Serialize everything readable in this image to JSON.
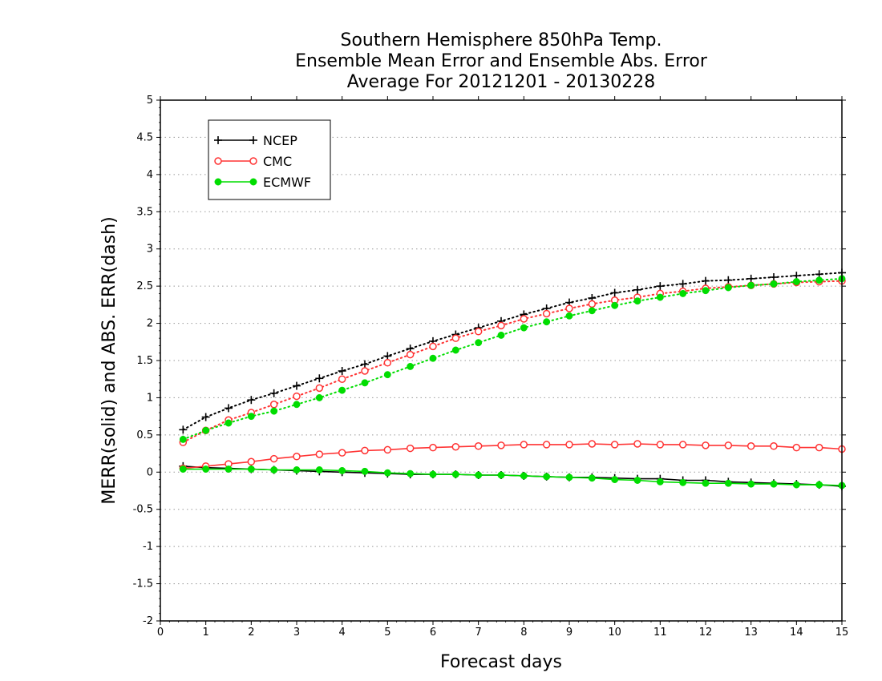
{
  "chart_data": {
    "type": "line",
    "title_lines": [
      "Southern Hemisphere 850hPa Temp.",
      "Ensemble Mean Error and Ensemble Abs. Error",
      "Average For 20121201 - 20130228"
    ],
    "xlabel": "Forecast days",
    "ylabel": "MERR(solid) and ABS. ERR(dash)",
    "xlim": [
      0,
      15
    ],
    "ylim": [
      -2,
      5
    ],
    "x_ticks": [
      "0",
      "1",
      "2",
      "3",
      "4",
      "5",
      "6",
      "7",
      "8",
      "9",
      "10",
      "11",
      "12",
      "13",
      "14",
      "15"
    ],
    "y_ticks": [
      "5",
      "4.5",
      "4",
      "3.5",
      "3",
      "2.5",
      "2",
      "1.5",
      "1",
      "0.5",
      "0",
      "-0.5",
      "-1",
      "-1.5",
      "-2"
    ],
    "grid": "horizontal dotted",
    "legend_position": "top-left",
    "x": [
      0.5,
      1,
      1.5,
      2,
      2.5,
      3,
      3.5,
      4,
      4.5,
      5,
      5.5,
      6,
      6.5,
      7,
      7.5,
      8,
      8.5,
      9,
      9.5,
      10,
      10.5,
      11,
      11.5,
      12,
      12.5,
      13,
      13.5,
      14,
      14.5,
      15
    ],
    "series": [
      {
        "name": "NCEP",
        "color": "#000000",
        "marker": "plus",
        "abs_err": [
          0.57,
          0.74,
          0.86,
          0.97,
          1.06,
          1.16,
          1.26,
          1.36,
          1.45,
          1.56,
          1.66,
          1.76,
          1.85,
          1.94,
          2.03,
          2.12,
          2.2,
          2.28,
          2.34,
          2.41,
          2.45,
          2.5,
          2.53,
          2.57,
          2.58,
          2.6,
          2.62,
          2.64,
          2.66,
          2.68
        ],
        "mean_err": [
          0.08,
          0.06,
          0.05,
          0.04,
          0.03,
          0.02,
          0.01,
          0.0,
          -0.01,
          -0.02,
          -0.03,
          -0.03,
          -0.03,
          -0.04,
          -0.04,
          -0.05,
          -0.06,
          -0.07,
          -0.07,
          -0.08,
          -0.09,
          -0.09,
          -0.11,
          -0.11,
          -0.13,
          -0.14,
          -0.15,
          -0.16,
          -0.17,
          -0.19
        ]
      },
      {
        "name": "CMC",
        "color": "#ff3333",
        "marker": "open-circle",
        "abs_err": [
          0.4,
          0.56,
          0.7,
          0.8,
          0.91,
          1.02,
          1.13,
          1.25,
          1.36,
          1.47,
          1.58,
          1.69,
          1.8,
          1.89,
          1.97,
          2.06,
          2.13,
          2.2,
          2.26,
          2.31,
          2.35,
          2.4,
          2.43,
          2.47,
          2.49,
          2.51,
          2.53,
          2.55,
          2.56,
          2.57
        ],
        "mean_err": [
          0.05,
          0.08,
          0.11,
          0.14,
          0.18,
          0.21,
          0.24,
          0.26,
          0.29,
          0.3,
          0.32,
          0.33,
          0.34,
          0.35,
          0.36,
          0.37,
          0.37,
          0.37,
          0.38,
          0.37,
          0.38,
          0.37,
          0.37,
          0.36,
          0.36,
          0.35,
          0.35,
          0.33,
          0.33,
          0.31
        ]
      },
      {
        "name": "ECMWF",
        "color": "#00dd00",
        "marker": "filled-circle",
        "abs_err": [
          0.44,
          0.56,
          0.66,
          0.75,
          0.82,
          0.91,
          1.0,
          1.1,
          1.2,
          1.31,
          1.42,
          1.53,
          1.64,
          1.74,
          1.84,
          1.94,
          2.02,
          2.1,
          2.17,
          2.24,
          2.3,
          2.35,
          2.4,
          2.44,
          2.48,
          2.51,
          2.53,
          2.56,
          2.58,
          2.6
        ],
        "mean_err": [
          0.04,
          0.04,
          0.04,
          0.04,
          0.03,
          0.03,
          0.03,
          0.02,
          0.01,
          -0.01,
          -0.02,
          -0.03,
          -0.03,
          -0.04,
          -0.04,
          -0.05,
          -0.06,
          -0.07,
          -0.08,
          -0.1,
          -0.11,
          -0.13,
          -0.14,
          -0.15,
          -0.15,
          -0.16,
          -0.16,
          -0.17,
          -0.17,
          -0.18
        ]
      }
    ]
  }
}
